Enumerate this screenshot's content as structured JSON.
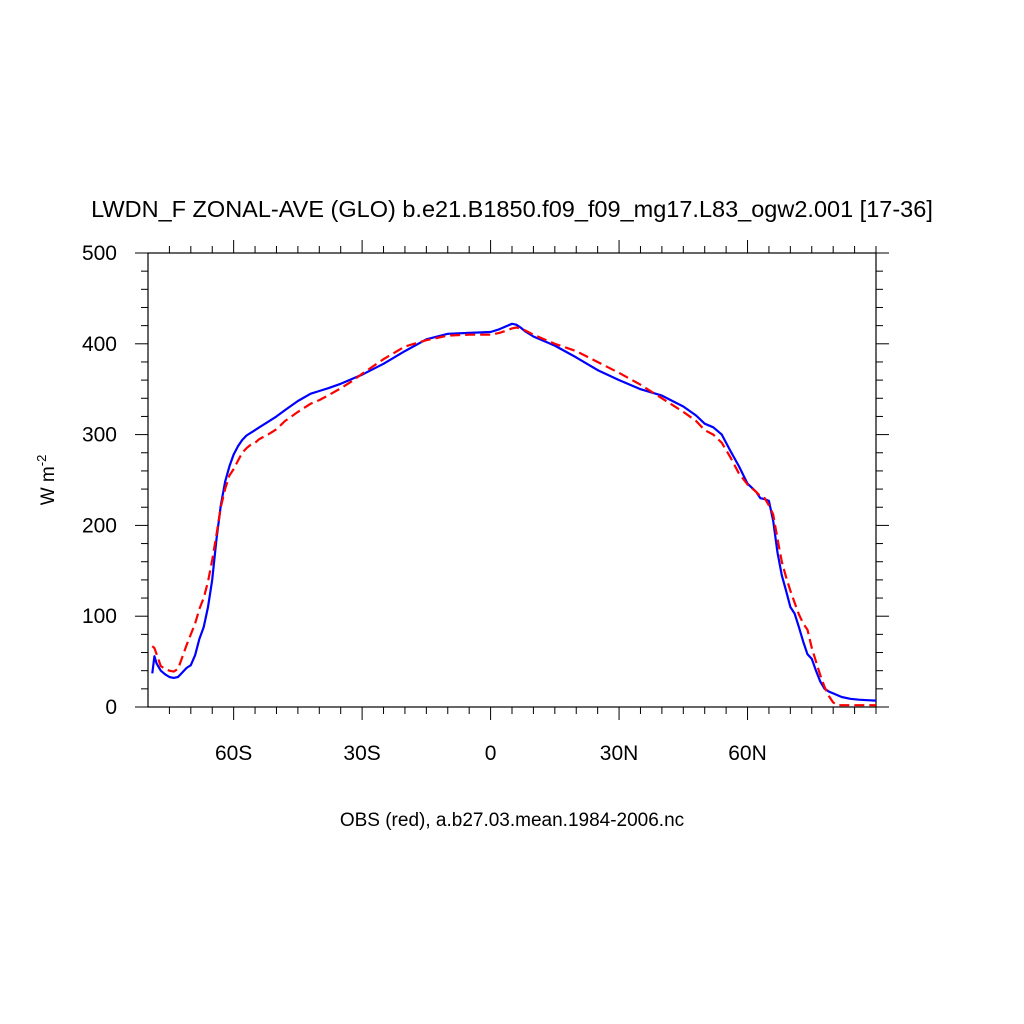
{
  "chart_data": {
    "type": "line",
    "title": "LWDN_F ZONAL-AVE (GLO) b.e21.B1850.f09_f09_mg17.L83_ogw2.001 [17-36]",
    "ylabel_main": "W m",
    "ylabel_sup": "-2",
    "xlabel": "OBS (red), a.b27.03.mean.1984-2006.nc",
    "xlim": [
      -80,
      90
    ],
    "ylim": [
      0,
      500
    ],
    "x_ticks": [
      {
        "value": -60,
        "label": "60S"
      },
      {
        "value": -30,
        "label": "30S"
      },
      {
        "value": 0,
        "label": "0"
      },
      {
        "value": 30,
        "label": "30N"
      },
      {
        "value": 60,
        "label": "60N"
      }
    ],
    "y_ticks": [
      {
        "value": 0,
        "label": "0"
      },
      {
        "value": 100,
        "label": "100"
      },
      {
        "value": 200,
        "label": "200"
      },
      {
        "value": 300,
        "label": "300"
      },
      {
        "value": 400,
        "label": "400"
      },
      {
        "value": 500,
        "label": "500"
      }
    ],
    "series": [
      {
        "color": "#0000ff",
        "dash": "solid",
        "x": [
          -79,
          -78.5,
          -78,
          -77,
          -76,
          -75,
          -74,
          -73,
          -72,
          -71,
          -70,
          -69,
          -68,
          -67,
          -66,
          -65,
          -64,
          -63,
          -62,
          -61,
          -60,
          -59,
          -58,
          -57,
          -56,
          -55,
          -54,
          -52,
          -50,
          -48,
          -45,
          -42,
          -40,
          -38,
          -35,
          -32,
          -30,
          -25,
          -20,
          -15,
          -10,
          -5,
          0,
          2,
          4,
          5,
          6,
          7,
          8,
          10,
          15,
          20,
          25,
          30,
          35,
          40,
          45,
          48,
          50,
          52,
          54,
          56,
          58,
          60,
          62,
          63,
          64,
          65,
          66,
          67,
          68,
          69,
          70,
          71,
          72,
          73,
          74,
          75,
          76,
          77,
          78,
          79,
          80,
          82,
          84,
          86,
          88,
          90
        ],
        "y": [
          37,
          56,
          48,
          40,
          36,
          33,
          32,
          33,
          38,
          43,
          46,
          57,
          75,
          88,
          110,
          140,
          185,
          222,
          248,
          265,
          278,
          287,
          294,
          299,
          302,
          305,
          308,
          314,
          320,
          327,
          337,
          345,
          348,
          351,
          356,
          362,
          366,
          378,
          392,
          405,
          411,
          412,
          413,
          416,
          420,
          422,
          421,
          418,
          414,
          408,
          398,
          385,
          371,
          360,
          350,
          343,
          331,
          321,
          312,
          308,
          300,
          282,
          265,
          246,
          237,
          230,
          229,
          227,
          205,
          170,
          145,
          128,
          110,
          103,
          88,
          72,
          58,
          53,
          40,
          28,
          20,
          17,
          15,
          11,
          9,
          8,
          7.5,
          7
        ]
      },
      {
        "color": "#ff0000",
        "dash": "dashed",
        "x": [
          -79,
          -78.5,
          -78,
          -77,
          -76,
          -75,
          -74,
          -73,
          -72,
          -71,
          -70,
          -69,
          -68,
          -67,
          -66,
          -65,
          -64,
          -63,
          -62,
          -61,
          -60,
          -59,
          -58,
          -57,
          -56,
          -55,
          -54,
          -52,
          -50,
          -48,
          -45,
          -42,
          -40,
          -38,
          -35,
          -32,
          -30,
          -25,
          -20,
          -15,
          -10,
          -5,
          0,
          2,
          4,
          5,
          6,
          7,
          8,
          10,
          15,
          20,
          25,
          30,
          35,
          40,
          45,
          48,
          50,
          52,
          54,
          56,
          58,
          60,
          62,
          63,
          64,
          65,
          66,
          67,
          68,
          69,
          70,
          71,
          72,
          73,
          74,
          75,
          76,
          77,
          78,
          79,
          80,
          81,
          82,
          84,
          86,
          88,
          90
        ],
        "y": [
          67,
          65,
          58,
          45,
          42,
          40,
          39,
          42,
          55,
          68,
          80,
          92,
          108,
          120,
          138,
          162,
          190,
          220,
          240,
          255,
          262,
          271,
          280,
          285,
          289,
          291,
          295,
          300,
          306,
          315,
          325,
          334,
          338,
          343,
          351,
          360,
          367,
          383,
          397,
          404,
          409,
          410,
          410,
          412,
          415,
          417,
          418,
          417,
          415,
          410,
          400,
          392,
          380,
          368,
          355,
          340,
          325,
          315,
          305,
          300,
          291,
          275,
          257,
          245,
          237,
          232,
          230,
          222,
          212,
          185,
          160,
          143,
          128,
          115,
          102,
          92,
          85,
          65,
          50,
          35,
          22,
          12,
          5,
          2,
          2,
          2,
          2,
          2,
          2
        ]
      }
    ]
  }
}
